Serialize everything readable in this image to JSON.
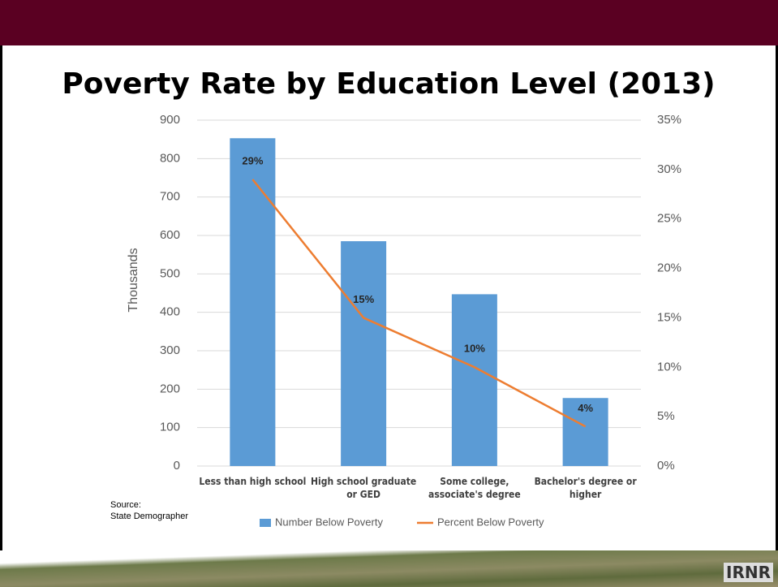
{
  "chart_data": {
    "type": "combo",
    "title": "Poverty Rate by Education Level (2013)",
    "categories": [
      "Less than high school",
      "High school graduate or GED",
      "Some college, associate's degree",
      "Bachelor's degree or higher"
    ],
    "series": [
      {
        "name": "Number Below Poverty",
        "type": "bar",
        "color": "#5b9bd5",
        "values": [
          853,
          585,
          447,
          177
        ]
      },
      {
        "name": "Percent Below Poverty",
        "type": "line",
        "color": "#ed7d31",
        "axis": "y2",
        "values": [
          29,
          15,
          10,
          4
        ],
        "value_labels": [
          "29%",
          "15%",
          "10%",
          "4%"
        ]
      }
    ],
    "ylabel": "Thousands",
    "ylim": [
      0,
      900
    ],
    "yticks": [
      0,
      100,
      200,
      300,
      400,
      500,
      600,
      700,
      800,
      900
    ],
    "y2lim": [
      0,
      35
    ],
    "y2ticks": [
      {
        "value": 0,
        "label": "0%"
      },
      {
        "value": 5,
        "label": "5%"
      },
      {
        "value": 10,
        "label": "10%"
      },
      {
        "value": 15,
        "label": "15%"
      },
      {
        "value": 20,
        "label": "20%"
      },
      {
        "value": 25,
        "label": "25%"
      },
      {
        "value": 30,
        "label": "30%"
      },
      {
        "value": 35,
        "label": "35%"
      }
    ],
    "grid": true,
    "legend": "bottom"
  },
  "source": [
    "Source:",
    "State Demographer"
  ],
  "logo": "IRNR"
}
